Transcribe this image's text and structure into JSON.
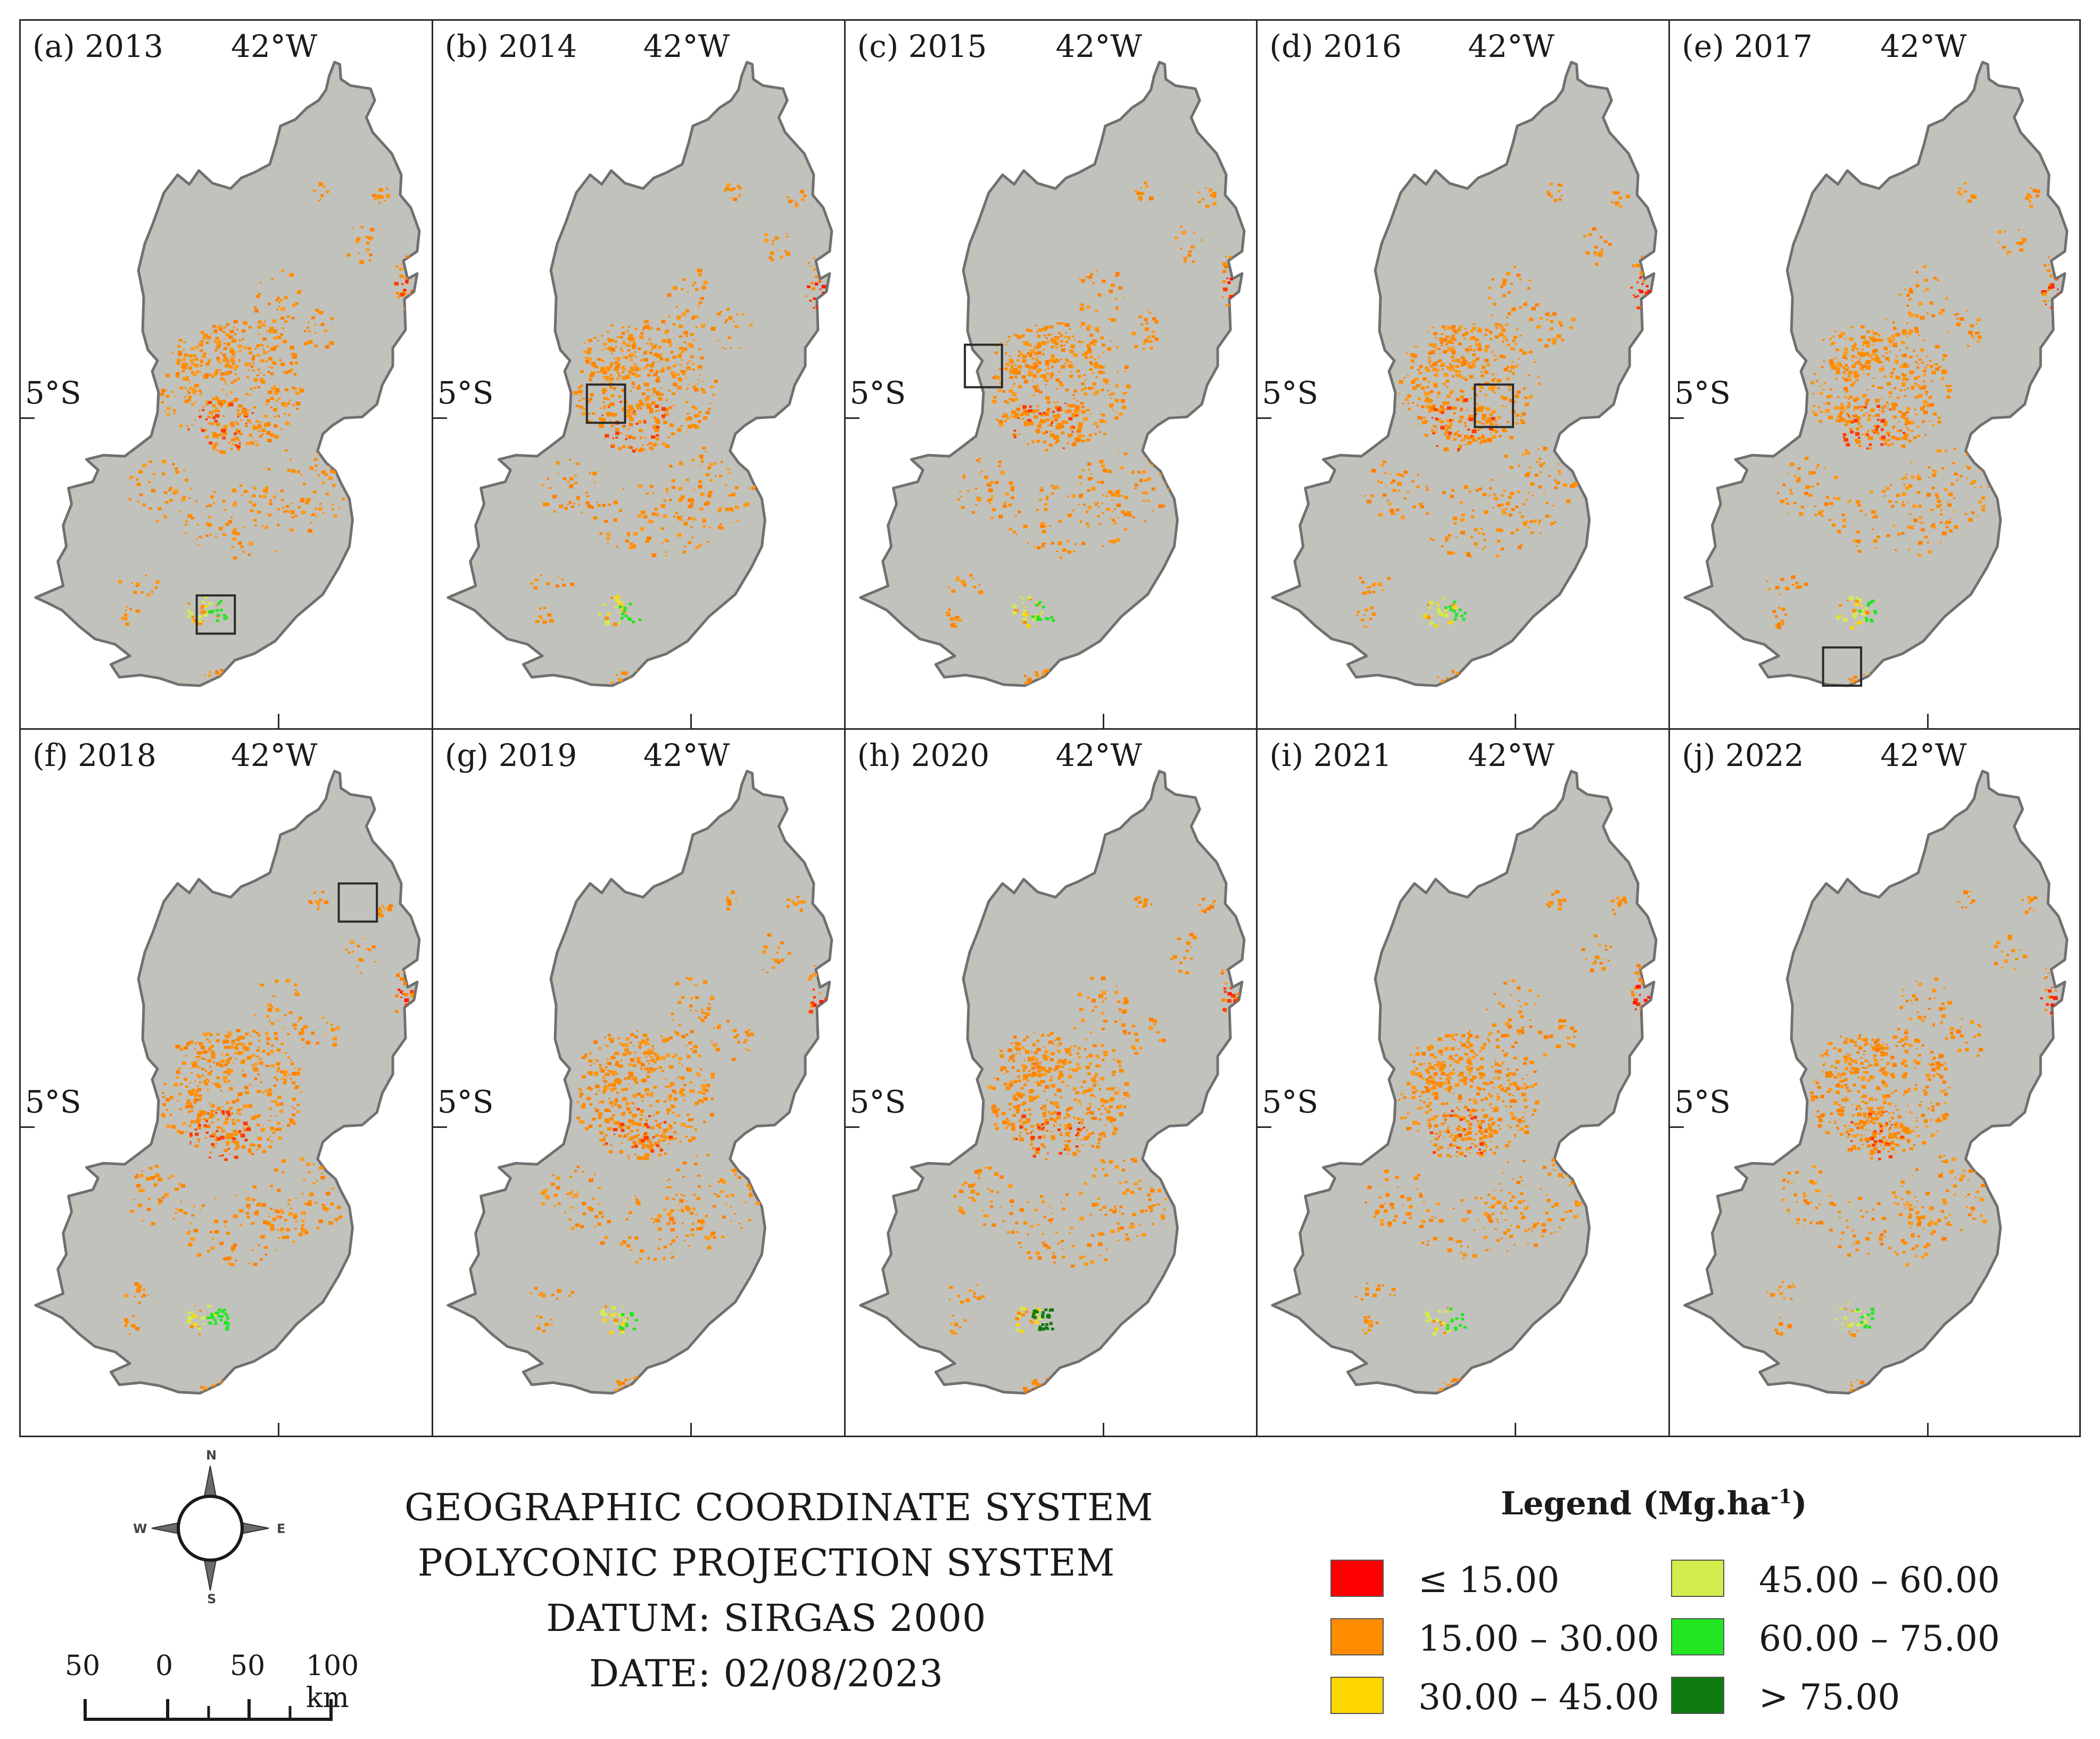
{
  "panels": [
    {
      "label": "(a) 2013",
      "lon": "42°W",
      "lat": "5°S",
      "box": "s-south"
    },
    {
      "label": "(b) 2014",
      "lon": "42°W",
      "lat": "5°S",
      "box": "c-west"
    },
    {
      "label": "(c) 2015",
      "lon": "42°W",
      "lat": "5°S",
      "box": "w-edge"
    },
    {
      "label": "(d) 2016",
      "lon": "42°W",
      "lat": "5°S",
      "box": "c-center"
    },
    {
      "label": "(e) 2017",
      "lon": "42°W",
      "lat": "5°S",
      "box": "s-bottom"
    },
    {
      "label": "(f) 2018",
      "lon": "42°W",
      "lat": "5°S",
      "box": "ne"
    },
    {
      "label": "(g) 2019",
      "lon": "42°W",
      "lat": "5°S",
      "box": ""
    },
    {
      "label": "(h) 2020",
      "lon": "42°W",
      "lat": "5°S",
      "box": ""
    },
    {
      "label": "(i) 2021",
      "lon": "42°W",
      "lat": "5°S",
      "box": ""
    },
    {
      "label": "(j) 2022",
      "lon": "42°W",
      "lat": "5°S",
      "box": ""
    }
  ],
  "compass": {
    "n": "N",
    "s": "S",
    "e": "E",
    "w": "W"
  },
  "scale": {
    "labels": [
      "50",
      "0",
      "50",
      "100 km"
    ]
  },
  "projection": {
    "line1": "GEOGRAPHIC COORDINATE SYSTEM",
    "line2": "POLYCONIC PROJECTION SYSTEM",
    "line3": "DATUM: SIRGAS 2000",
    "line4": "DATE: 02/08/2023"
  },
  "legend": {
    "title": "Legend (Mg.ha",
    "title_sup": "-1",
    "title_end": ")",
    "items": [
      {
        "label": "≤ 15.00",
        "color": "#ff0000"
      },
      {
        "label": "15.00 – 30.00",
        "color": "#ff8c00"
      },
      {
        "label": "30.00 – 45.00",
        "color": "#ffd700"
      },
      {
        "label": "45.00 – 60.00",
        "color": "#d4ec4c"
      },
      {
        "label": "60.00 – 75.00",
        "color": "#22e622"
      },
      {
        "label": "> 75.00",
        "color": "#0f7a0f"
      }
    ]
  },
  "map_colors": {
    "land": "#c2c2bc",
    "outline": "#707070"
  }
}
